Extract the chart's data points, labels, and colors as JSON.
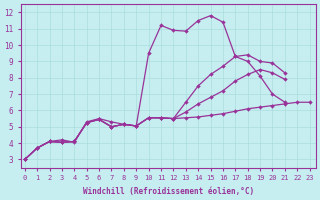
{
  "xlabel": "Windchill (Refroidissement éolien,°C)",
  "x_ticks": [
    0,
    1,
    2,
    3,
    4,
    5,
    6,
    7,
    8,
    9,
    10,
    11,
    12,
    13,
    14,
    15,
    16,
    17,
    18,
    19,
    20,
    21,
    22,
    23
  ],
  "y_ticks": [
    3,
    4,
    5,
    6,
    7,
    8,
    9,
    10,
    11,
    12
  ],
  "ylim": [
    2.5,
    12.5
  ],
  "xlim": [
    -0.3,
    23.5
  ],
  "bg_color": "#c6eef0",
  "line_color": "#993399",
  "grid_color": "#aadddd",
  "curves": [
    {
      "x": [
        0,
        1,
        2,
        3,
        4,
        5,
        6,
        7,
        8,
        9,
        10,
        11,
        12,
        13,
        14,
        15,
        16,
        17,
        18,
        19,
        20,
        21,
        22,
        23
      ],
      "y": [
        3.0,
        3.7,
        4.1,
        4.2,
        4.05,
        5.3,
        5.5,
        5.3,
        5.15,
        5.05,
        9.5,
        11.2,
        10.9,
        10.85,
        11.5,
        11.8,
        11.4,
        9.3,
        9.0,
        8.1,
        7.0,
        6.5,
        null,
        null
      ]
    },
    {
      "x": [
        0,
        1,
        2,
        3,
        4,
        5,
        6,
        7,
        8,
        9,
        10,
        11,
        12,
        13,
        14,
        15,
        16,
        17,
        18,
        19,
        20,
        21,
        22,
        23
      ],
      "y": [
        3.0,
        3.7,
        4.1,
        4.05,
        4.1,
        5.25,
        5.45,
        5.0,
        5.15,
        5.05,
        5.55,
        5.55,
        5.5,
        6.5,
        7.5,
        8.2,
        8.7,
        9.3,
        9.4,
        9.0,
        8.9,
        8.3,
        null,
        null
      ]
    },
    {
      "x": [
        0,
        1,
        2,
        3,
        4,
        5,
        6,
        7,
        8,
        9,
        10,
        11,
        12,
        13,
        14,
        15,
        16,
        17,
        18,
        19,
        20,
        21,
        22,
        23
      ],
      "y": [
        3.0,
        3.7,
        4.1,
        4.05,
        4.1,
        5.25,
        5.45,
        5.0,
        5.15,
        5.05,
        5.55,
        5.55,
        5.5,
        5.9,
        6.4,
        6.8,
        7.2,
        7.8,
        8.2,
        8.5,
        8.3,
        7.9,
        null,
        null
      ]
    },
    {
      "x": [
        0,
        1,
        2,
        3,
        4,
        5,
        6,
        7,
        8,
        9,
        10,
        11,
        12,
        13,
        14,
        15,
        16,
        17,
        18,
        19,
        20,
        21,
        22,
        23
      ],
      "y": [
        3.0,
        3.7,
        4.1,
        4.05,
        4.1,
        5.25,
        5.45,
        5.0,
        5.15,
        5.05,
        5.55,
        5.55,
        5.5,
        5.55,
        5.6,
        5.7,
        5.8,
        5.95,
        6.1,
        6.2,
        6.3,
        6.4,
        6.5,
        6.5
      ]
    }
  ],
  "marker": "D",
  "markersize": 2.0,
  "linewidth": 0.9
}
